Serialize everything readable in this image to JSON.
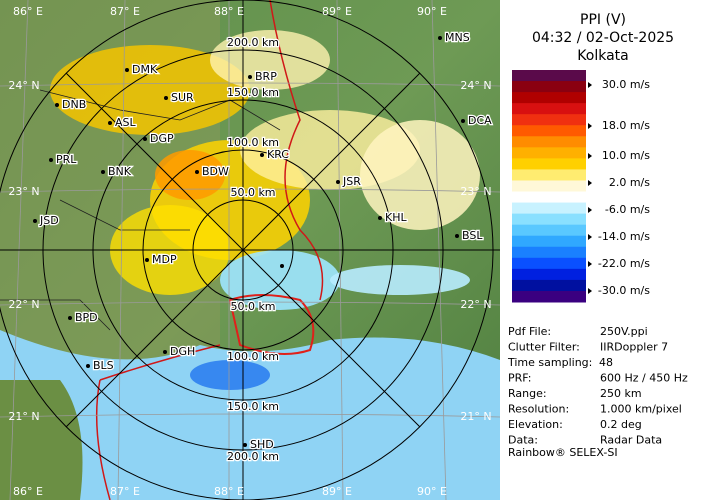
{
  "header": {
    "title": "PPI (V)",
    "time": "04:32 / 02-Oct-2025",
    "station": "Kolkata"
  },
  "legend": {
    "labels": [
      "30.0 m/s",
      "18.0 m/s",
      "10.0 m/s",
      "2.0 m/s",
      "-6.0 m/s",
      "-14.0 m/s",
      "-22.0 m/s",
      "-30.0 m/s"
    ]
  },
  "info": {
    "rows": [
      [
        "Pdf File:",
        "250V.ppi"
      ],
      [
        "Clutter Filter:",
        "IIRDoppler 7"
      ],
      [
        "Time sampling:",
        "48"
      ],
      [
        "PRF:",
        "600 Hz / 450 Hz"
      ],
      [
        "Range:",
        "250 km"
      ],
      [
        "Resolution:",
        "1.000 km/pixel"
      ],
      [
        "Elevation:",
        "0.2 deg"
      ],
      [
        "Data:",
        "Radar Data"
      ]
    ]
  },
  "footer": "Rainbow® SELEX-SI",
  "map": {
    "lon_labels": [
      "86° E",
      "87° E",
      "88° E",
      "89° E",
      "90° E"
    ],
    "lat_labels": [
      "24° N",
      "23° N",
      "22° N",
      "21° N"
    ],
    "range_labels": [
      "50.0 km",
      "100.0 km",
      "150.0 km",
      "200.0 km"
    ],
    "cities": [
      "MNS",
      "DMK",
      "BRP",
      "DNB",
      "SUR",
      "ASL",
      "DGP",
      "DCA",
      "PRL",
      "BNK",
      "BDW",
      "KRC",
      "JSR",
      "JSD",
      "KHL",
      "BSL",
      "MDP",
      "BPD",
      "DGH",
      "BLS",
      "SHD"
    ]
  }
}
